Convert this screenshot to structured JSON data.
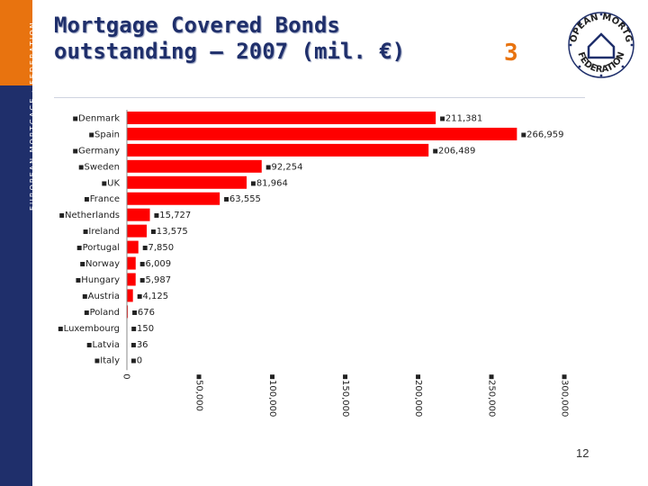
{
  "sidebar": {
    "vertical_text": "EUROPEAN MORTGAGE · FEDERATION"
  },
  "header": {
    "title_line1": "Mortgage Covered Bonds",
    "title_line2": "outstanding – 2007 (mil. €)",
    "slide_number": "3"
  },
  "logo": {
    "text_top": "EUROPEAN MORTGAGE",
    "text_bottom": "FEDERATION"
  },
  "footer": {
    "page_number": "12"
  },
  "colors": {
    "bar": "#ff0000",
    "accent_orange": "#e8730f",
    "navy": "#1f2f6b"
  },
  "chart_data": {
    "type": "bar",
    "orientation": "horizontal",
    "categories": [
      "Denmark",
      "Spain",
      "Germany",
      "Sweden",
      "UK",
      "France",
      "Netherlands",
      "Ireland",
      "Portugal",
      "Norway",
      "Hungary",
      "Austria",
      "Poland",
      "Luxembourg",
      "Latvia",
      "Italy"
    ],
    "values": [
      211381,
      266959,
      206489,
      92254,
      81964,
      63555,
      15727,
      13575,
      7850,
      6009,
      5987,
      4125,
      676,
      150,
      36,
      0
    ],
    "value_labels": [
      "211,381",
      "266,959",
      "206,489",
      "92,254",
      "81,964",
      "63,555",
      "15,727",
      "13,575",
      "7,850",
      "6,009",
      "5,987",
      "4,125",
      "676",
      "150",
      "36",
      "0"
    ],
    "x_ticks": [
      0,
      50000,
      100000,
      150000,
      200000,
      250000,
      300000
    ],
    "x_tick_labels": [
      "0",
      "50,000",
      "100,000",
      "150,000",
      "200,000",
      "250,000",
      "300,000"
    ],
    "xlim": [
      0,
      300000
    ],
    "grid": false,
    "legend": "none"
  }
}
